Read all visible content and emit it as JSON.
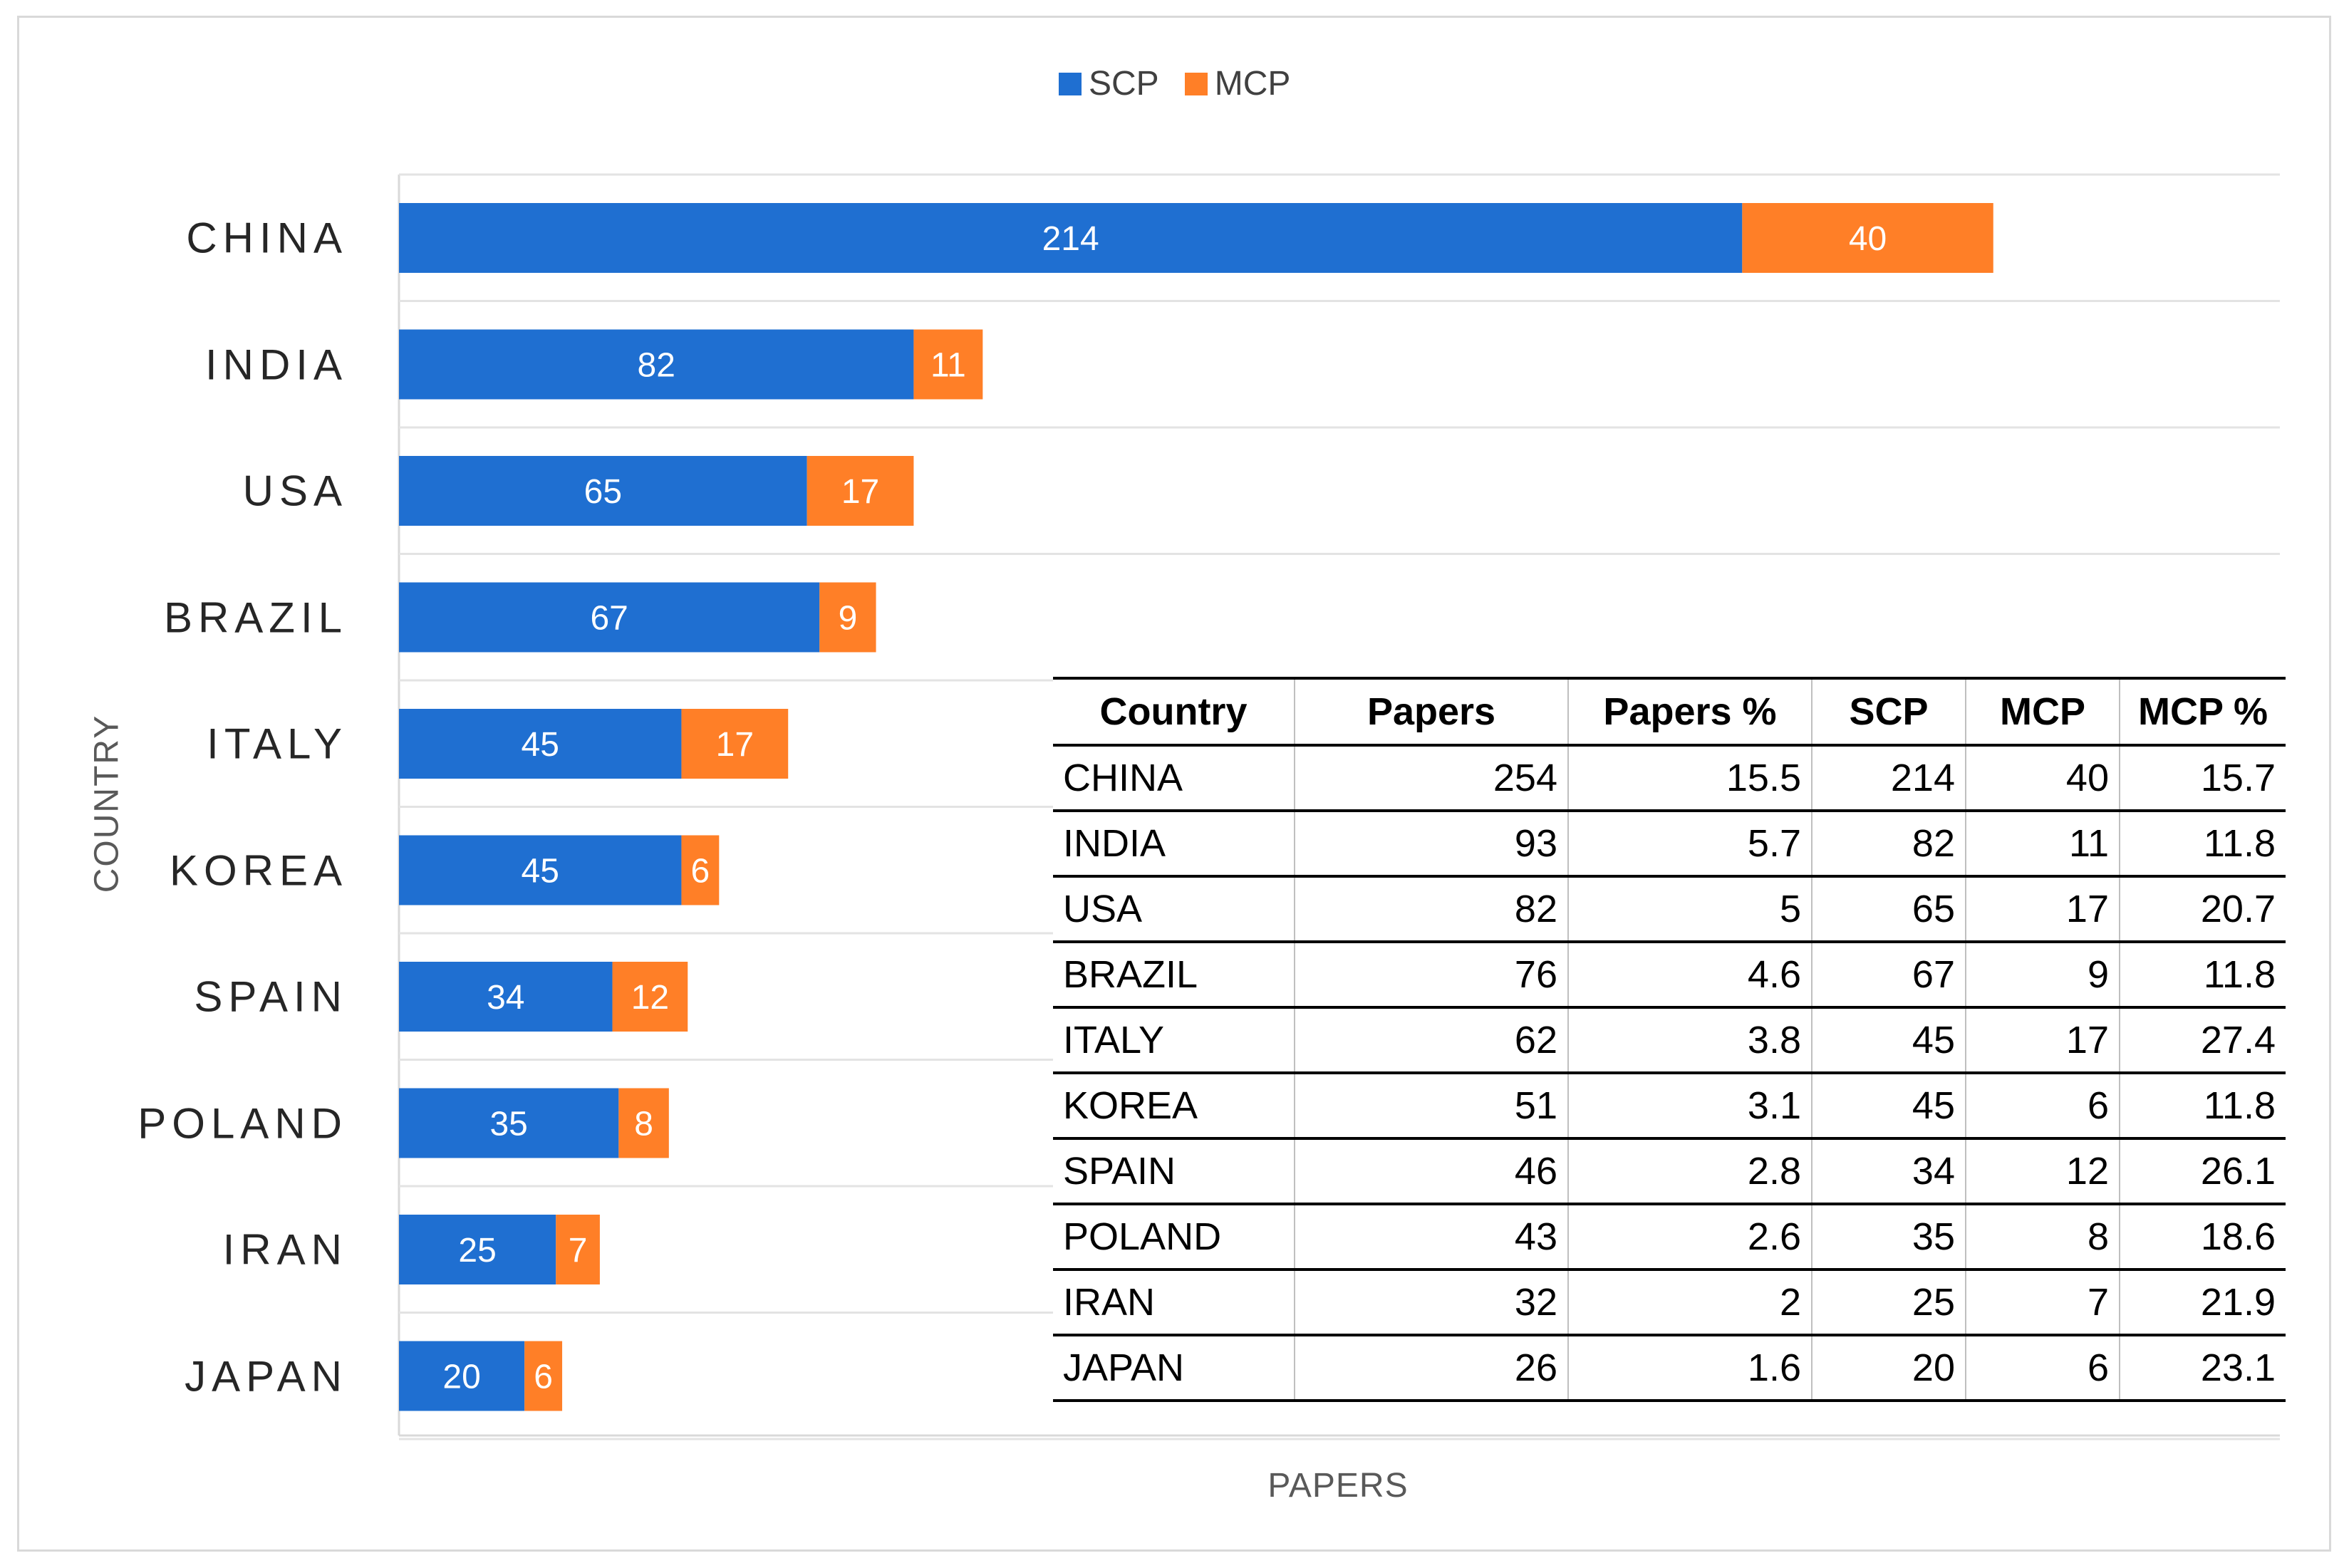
{
  "chart_data": {
    "type": "bar",
    "orientation": "horizontal",
    "stacked": true,
    "categories": [
      "CHINA",
      "INDIA",
      "USA",
      "BRAZIL",
      "ITALY",
      "KOREA",
      "SPAIN",
      "POLAND",
      "IRAN",
      "JAPAN"
    ],
    "series": [
      {
        "name": "SCP",
        "color": "#1f6fd1",
        "values": [
          214,
          82,
          65,
          67,
          45,
          45,
          34,
          35,
          25,
          20
        ]
      },
      {
        "name": "MCP",
        "color": "#ff7f27",
        "values": [
          40,
          11,
          17,
          9,
          17,
          6,
          12,
          8,
          7,
          6
        ]
      }
    ],
    "xlabel": "PAPERS",
    "ylabel": "COUNTRY",
    "xlim": [
      0,
      300
    ],
    "legend": "top-center",
    "grid": "horizontal separators"
  },
  "table": {
    "headers": [
      "Country",
      "Papers",
      "Papers %",
      "SCP",
      "MCP",
      "MCP %"
    ],
    "rows": [
      [
        "CHINA",
        "254",
        "15.5",
        "214",
        "40",
        "15.7"
      ],
      [
        "INDIA",
        "93",
        "5.7",
        "82",
        "11",
        "11.8"
      ],
      [
        "USA",
        "82",
        "5",
        "65",
        "17",
        "20.7"
      ],
      [
        "BRAZIL",
        "76",
        "4.6",
        "67",
        "9",
        "11.8"
      ],
      [
        "ITALY",
        "62",
        "3.8",
        "45",
        "17",
        "27.4"
      ],
      [
        "KOREA",
        "51",
        "3.1",
        "45",
        "6",
        "11.8"
      ],
      [
        "SPAIN",
        "46",
        "2.8",
        "34",
        "12",
        "26.1"
      ],
      [
        "POLAND",
        "43",
        "2.6",
        "35",
        "8",
        "18.6"
      ],
      [
        "IRAN",
        "32",
        "2",
        "25",
        "7",
        "21.9"
      ],
      [
        "JAPAN",
        "26",
        "1.6",
        "20",
        "6",
        "23.1"
      ]
    ]
  }
}
